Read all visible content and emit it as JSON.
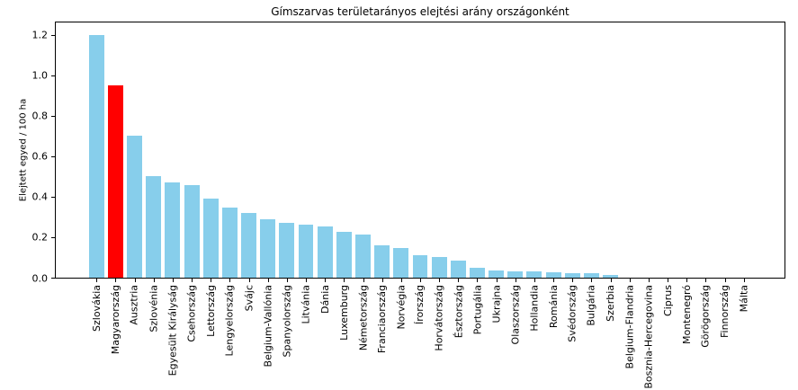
{
  "chart_data": {
    "type": "bar",
    "title": "Gímszarvas területarányos elejtési arány országonként",
    "xlabel": "",
    "ylabel": "Elejtett egyed / 100 ha",
    "ylim": [
      0,
      1.26
    ],
    "yticks": [
      0.0,
      0.2,
      0.4,
      0.6,
      0.8,
      1.0,
      1.2
    ],
    "grid": false,
    "legend": false,
    "bar_color": "#87CEEB",
    "highlight_color": "#FF0000",
    "highlight_category": "Magyarország",
    "categories": [
      "Szlovákia",
      "Magyarország",
      "Ausztria",
      "Szlovénia",
      "Egyesült Királyság",
      "Csehország",
      "Lettország",
      "Lengyelország",
      "Svájc",
      "Belgium-Vallónia",
      "Spanyolország",
      "Litvánia",
      "Dánia",
      "Luxemburg",
      "Németország",
      "Franciaország",
      "Norvégia",
      "Írország",
      "Horvátország",
      "Észtország",
      "Portugália",
      "Ukrajna",
      "Olaszország",
      "Hollandia",
      "Románia",
      "Svédország",
      "Bulgária",
      "Szerbia",
      "Belgium-Flandria",
      "Bosznia-Hercegovina",
      "Ciprus",
      "Montenegró",
      "Görögország",
      "Finnország",
      "Málta"
    ],
    "values": [
      1.2,
      0.95,
      0.7,
      0.5,
      0.47,
      0.455,
      0.39,
      0.345,
      0.32,
      0.29,
      0.27,
      0.26,
      0.255,
      0.228,
      0.215,
      0.16,
      0.145,
      0.11,
      0.1,
      0.085,
      0.05,
      0.037,
      0.033,
      0.032,
      0.028,
      0.024,
      0.021,
      0.015,
      0.0,
      0.0,
      0.0,
      0.0,
      0.0,
      0.0,
      0.0
    ]
  }
}
